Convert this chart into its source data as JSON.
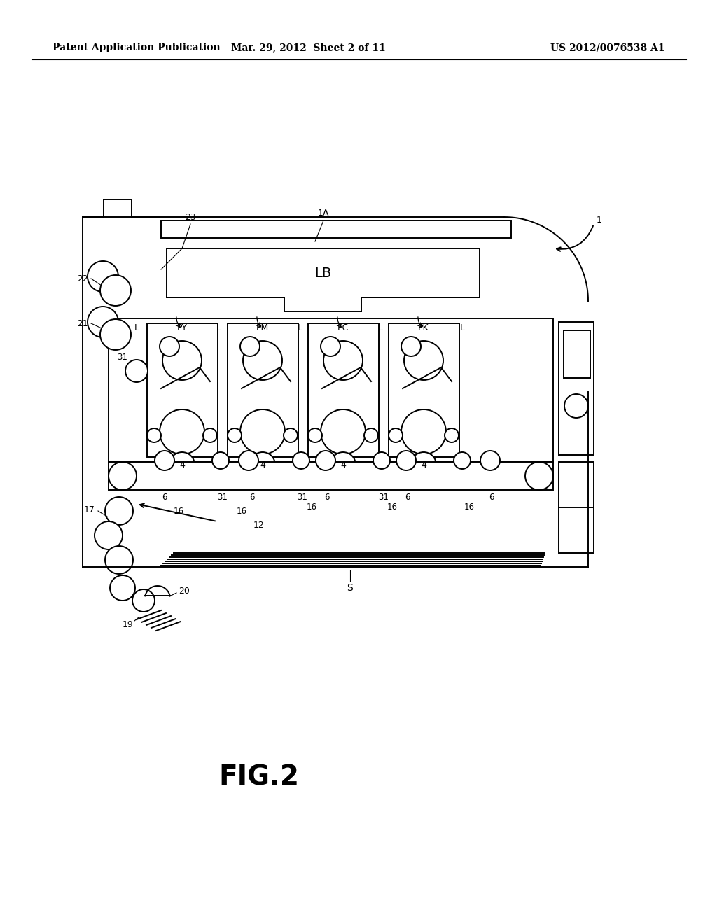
{
  "bg_color": "#ffffff",
  "line_color": "#000000",
  "header_left": "Patent Application Publication",
  "header_mid": "Mar. 29, 2012  Sheet 2 of 11",
  "header_right": "US 2012/0076538 A1",
  "fig_label": "FIG.2"
}
